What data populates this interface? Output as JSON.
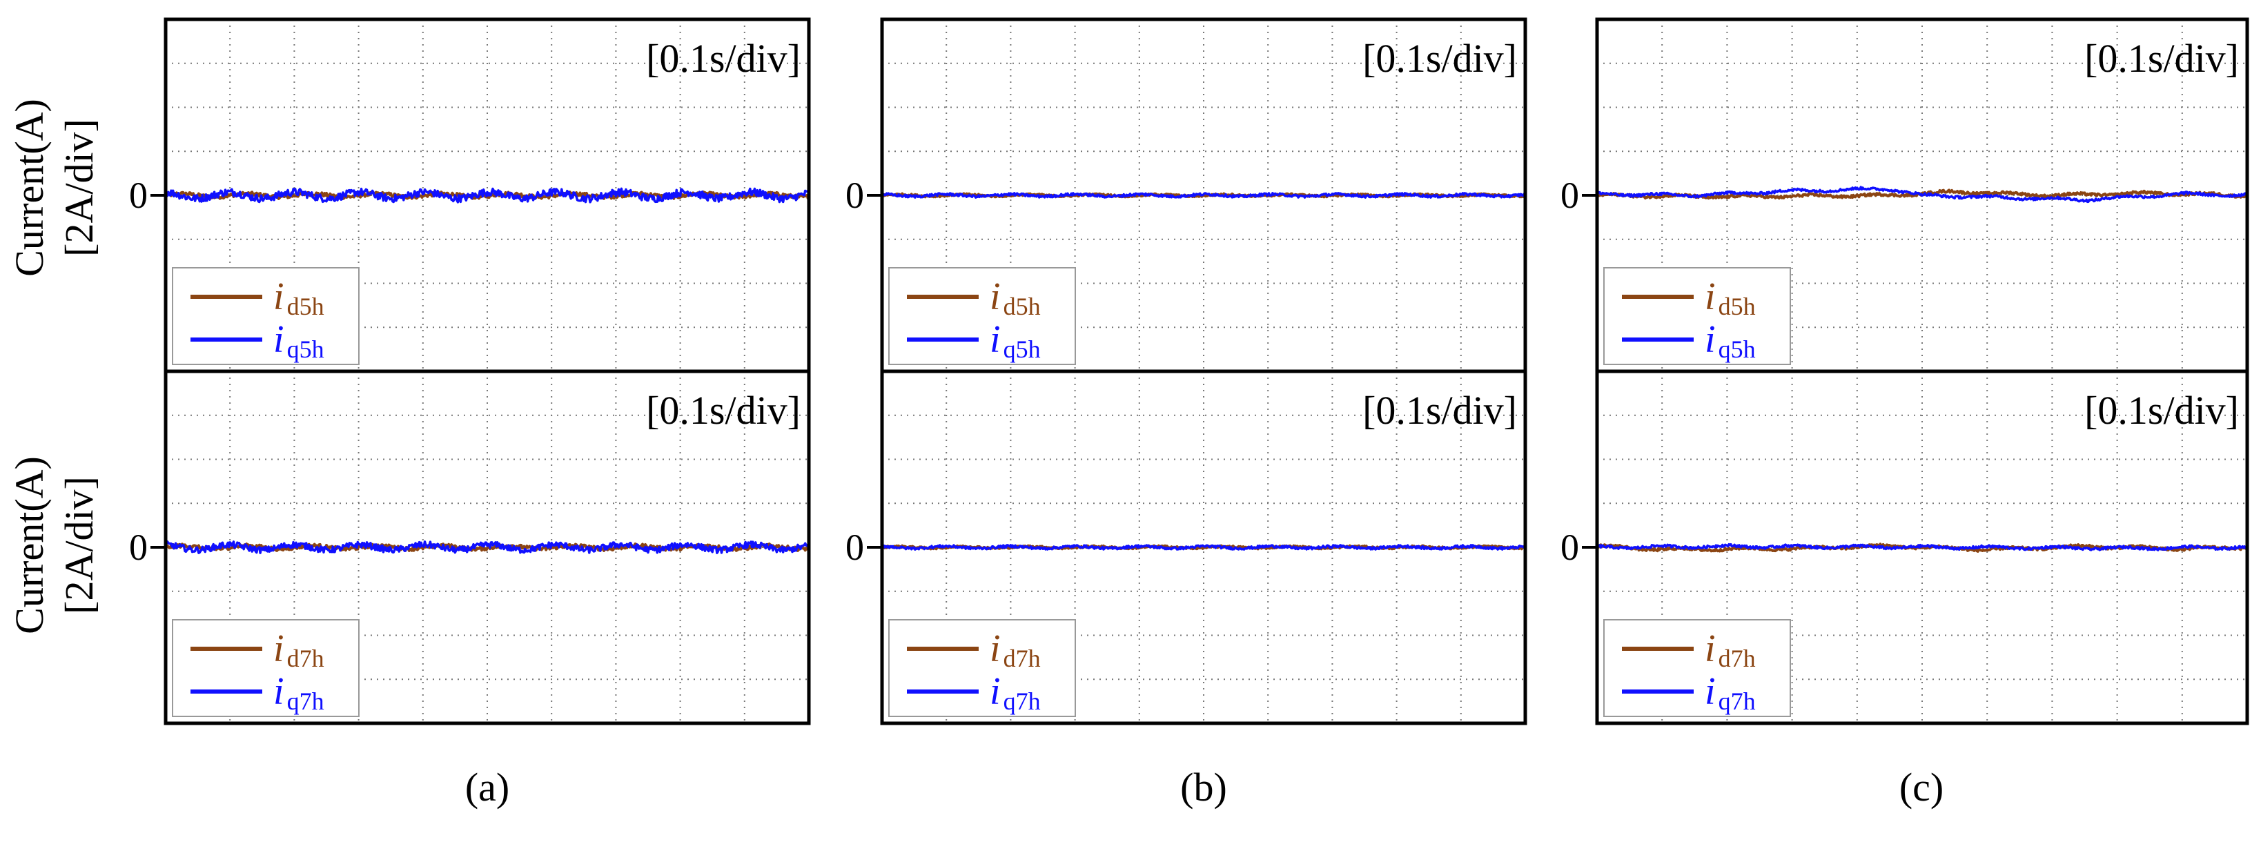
{
  "figure": {
    "ylabel_line1": "Current(A)",
    "ylabel_line2": "[2A/div]",
    "timebase": "[0.1s/div]",
    "zero_label": "0",
    "colors": {
      "d": "#8B4513",
      "q": "#1010FF",
      "grid": "#777777",
      "frame": "#000000"
    }
  },
  "chart_data": [
    {
      "type": "line",
      "panel": "(a)",
      "title": "[0.1s/div]",
      "ylabel": "Current(A) [2A/div]",
      "xlabel": "",
      "xunit": "s",
      "yunit": "A",
      "xlim": [
        0,
        1.0
      ],
      "ylim": [
        -4.0,
        4.0
      ],
      "grid": true,
      "legend": [
        "i d5h",
        "i q5h"
      ],
      "legend_position": "bottom-left",
      "series": [
        {
          "name": "id5h",
          "base": "i",
          "sub": "d5h",
          "color": "#8B4513",
          "mean": 0.0,
          "ripple": 0.06
        },
        {
          "name": "iq5h",
          "base": "i",
          "sub": "q5h",
          "color": "#1010FF",
          "mean": 0.0,
          "ripple": 0.12
        }
      ]
    },
    {
      "type": "line",
      "panel": "(a)",
      "title": "[0.1s/div]",
      "ylabel": "Current(A) [2A/div]",
      "xlabel": "",
      "xunit": "s",
      "yunit": "A",
      "xlim": [
        0,
        1.0
      ],
      "ylim": [
        -4.0,
        4.0
      ],
      "grid": true,
      "legend": [
        "i d7h",
        "i q7h"
      ],
      "legend_position": "bottom-left",
      "series": [
        {
          "name": "id7h",
          "base": "i",
          "sub": "d7h",
          "color": "#8B4513",
          "mean": 0.0,
          "ripple": 0.06
        },
        {
          "name": "iq7h",
          "base": "i",
          "sub": "q7h",
          "color": "#1010FF",
          "mean": 0.0,
          "ripple": 0.1
        }
      ]
    },
    {
      "type": "line",
      "panel": "(b)",
      "title": "[0.1s/div]",
      "ylabel": "",
      "xlabel": "",
      "xunit": "s",
      "yunit": "A",
      "xlim": [
        0,
        1.0
      ],
      "ylim": [
        -4.0,
        4.0
      ],
      "grid": true,
      "legend": [
        "i d5h",
        "i q5h"
      ],
      "legend_position": "bottom-left",
      "series": [
        {
          "name": "id5h",
          "base": "i",
          "sub": "d5h",
          "color": "#8B4513",
          "mean": 0.0,
          "ripple": 0.03
        },
        {
          "name": "iq5h",
          "base": "i",
          "sub": "q5h",
          "color": "#1010FF",
          "mean": 0.0,
          "ripple": 0.04
        }
      ]
    },
    {
      "type": "line",
      "panel": "(b)",
      "title": "[0.1s/div]",
      "ylabel": "",
      "xlabel": "",
      "xunit": "s",
      "yunit": "A",
      "xlim": [
        0,
        1.0
      ],
      "ylim": [
        -4.0,
        4.0
      ],
      "grid": true,
      "legend": [
        "i d7h",
        "i q7h"
      ],
      "legend_position": "bottom-left",
      "series": [
        {
          "name": "id7h",
          "base": "i",
          "sub": "d7h",
          "color": "#8B4513",
          "mean": 0.0,
          "ripple": 0.03
        },
        {
          "name": "iq7h",
          "base": "i",
          "sub": "q7h",
          "color": "#1010FF",
          "mean": 0.0,
          "ripple": 0.04
        }
      ]
    },
    {
      "type": "line",
      "panel": "(c)",
      "title": "[0.1s/div]",
      "ylabel": "",
      "xlabel": "",
      "xunit": "s",
      "yunit": "A",
      "xlim": [
        0,
        1.0
      ],
      "ylim": [
        -4.0,
        4.0
      ],
      "grid": true,
      "legend": [
        "i d5h",
        "i q5h"
      ],
      "legend_position": "bottom-left",
      "series": [
        {
          "name": "id5h",
          "base": "i",
          "sub": "d5h",
          "color": "#8B4513",
          "mean": 0.0,
          "ripple": 0.04,
          "drift": [
            [
              0,
              0.0
            ],
            [
              0.2,
              -0.03
            ],
            [
              0.45,
              0.0
            ],
            [
              0.55,
              0.08
            ],
            [
              0.7,
              0.0
            ],
            [
              0.85,
              0.05
            ],
            [
              1.0,
              0.0
            ]
          ]
        },
        {
          "name": "iq5h",
          "base": "i",
          "sub": "q5h",
          "color": "#1010FF",
          "mean": 0.0,
          "ripple": 0.04,
          "drift": [
            [
              0,
              0.03
            ],
            [
              0.15,
              0.0
            ],
            [
              0.3,
              0.1
            ],
            [
              0.45,
              0.15
            ],
            [
              0.5,
              0.0
            ],
            [
              0.75,
              -0.1
            ],
            [
              0.9,
              0.03
            ],
            [
              1.0,
              0.0
            ]
          ]
        }
      ]
    },
    {
      "type": "line",
      "panel": "(c)",
      "title": "[0.1s/div]",
      "ylabel": "",
      "xlabel": "",
      "xunit": "s",
      "yunit": "A",
      "xlim": [
        0,
        1.0
      ],
      "ylim": [
        -4.0,
        4.0
      ],
      "grid": true,
      "legend": [
        "i d7h",
        "i q7h"
      ],
      "legend_position": "bottom-left",
      "series": [
        {
          "name": "id7h",
          "base": "i",
          "sub": "d7h",
          "color": "#8B4513",
          "mean": 0.0,
          "ripple": 0.04,
          "drift": [
            [
              0,
              0.03
            ],
            [
              0.1,
              -0.05
            ],
            [
              0.3,
              -0.03
            ],
            [
              0.45,
              0.03
            ],
            [
              0.6,
              -0.05
            ],
            [
              0.75,
              0.02
            ],
            [
              0.9,
              -0.03
            ],
            [
              1.0,
              0.0
            ]
          ]
        },
        {
          "name": "iq7h",
          "base": "i",
          "sub": "q7h",
          "color": "#1010FF",
          "mean": 0.0,
          "ripple": 0.04,
          "drift": [
            [
              0,
              0.0
            ],
            [
              0.2,
              0.02
            ],
            [
              0.55,
              0.0
            ],
            [
              0.8,
              -0.02
            ],
            [
              1.0,
              0.0
            ]
          ]
        }
      ]
    }
  ],
  "captions": [
    "(a)",
    "(b)",
    "(c)"
  ]
}
